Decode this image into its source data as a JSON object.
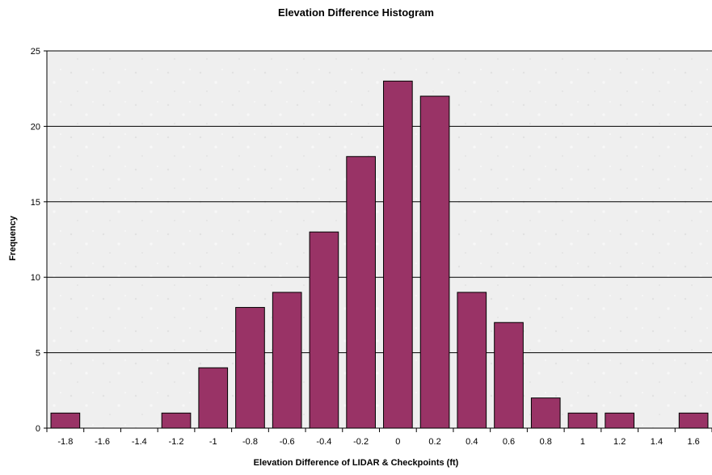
{
  "chart_data": {
    "type": "bar",
    "title": "Elevation Difference Histogram",
    "xlabel": "Elevation Difference of LIDAR & Checkpoints (ft)",
    "ylabel": "Frequency",
    "categories": [
      "-1.8",
      "-1.6",
      "-1.4",
      "-1.2",
      "-1",
      "-0.8",
      "-0.6",
      "-0.4",
      "-0.2",
      "0",
      "0.2",
      "0.4",
      "0.6",
      "0.8",
      "1",
      "1.2",
      "1.4",
      "1.6"
    ],
    "values": [
      1,
      0,
      0,
      1,
      4,
      8,
      9,
      13,
      18,
      23,
      22,
      9,
      7,
      2,
      1,
      1,
      0,
      1
    ],
    "ylim": [
      0,
      25
    ],
    "yticks": [
      "0",
      "5",
      "10",
      "15",
      "20",
      "25"
    ],
    "grid": true,
    "legend": "none",
    "colors": {
      "bar": "#993366",
      "plot_background": "#efefef",
      "gridline": "#000000"
    }
  }
}
